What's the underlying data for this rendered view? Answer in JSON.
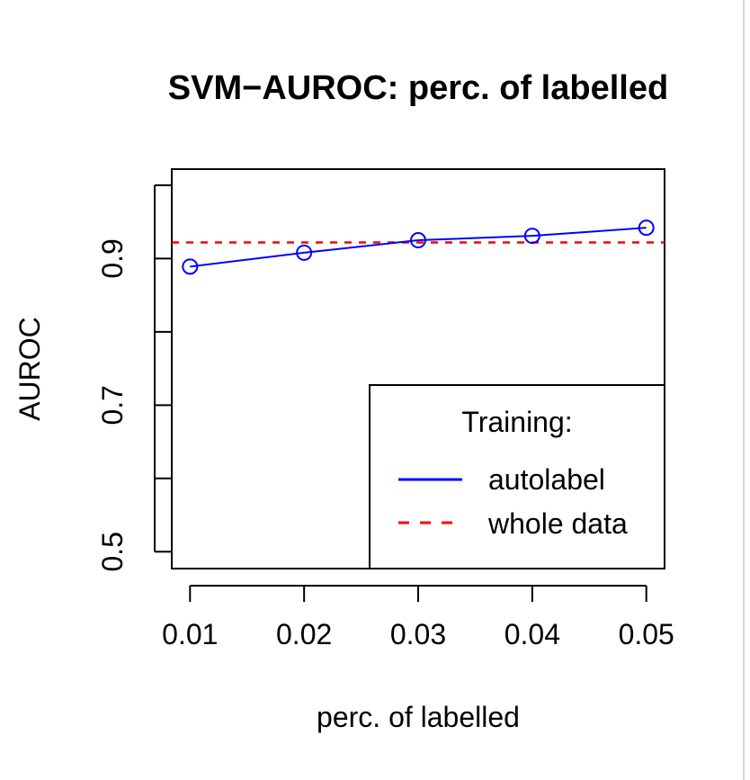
{
  "chart_data": {
    "type": "line",
    "title": "SVM−AUROC: perc. of labelled",
    "xlabel": "perc. of labelled",
    "ylabel": "AUROC",
    "x": [
      0.01,
      0.02,
      0.03,
      0.04,
      0.05
    ],
    "x_tick_labels": [
      "0.01",
      "0.02",
      "0.03",
      "0.04",
      "0.05"
    ],
    "y_ticks": [
      0.5,
      0.6,
      0.7,
      0.8,
      0.9,
      1.0
    ],
    "y_tick_labels": [
      "0.5",
      "0.7",
      "0.9"
    ],
    "xlim": [
      0.0084,
      0.0516
    ],
    "ylim": [
      0.477,
      1.022
    ],
    "series": [
      {
        "name": "autolabel",
        "values": [
          0.889,
          0.908,
          0.925,
          0.931,
          0.942
        ],
        "color": "#0000ff",
        "line_style": "solid",
        "marker": "open-circle"
      }
    ],
    "reference_lines": [
      {
        "name": "whole data",
        "value": 0.922,
        "color": "#ff0000",
        "line_style": "dashed"
      }
    ],
    "legend": {
      "title": "Training:",
      "placement": "bottom-right",
      "entries": [
        "autolabel",
        "whole data"
      ]
    },
    "grid": false
  }
}
